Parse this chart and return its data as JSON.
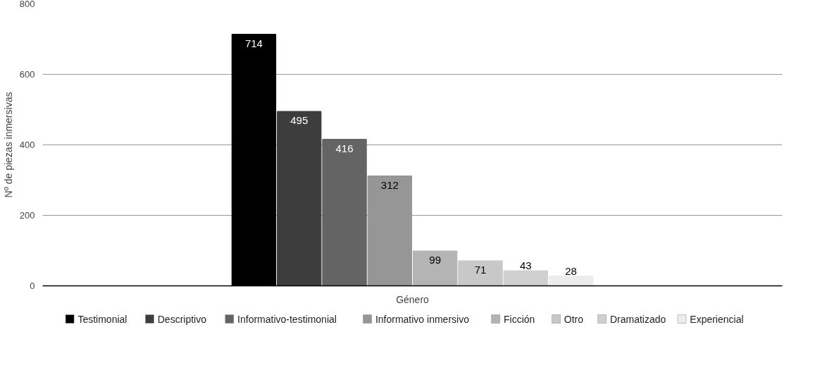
{
  "chart_data": {
    "type": "bar",
    "categories": [
      null
    ],
    "xlabel": "Género",
    "ylabel": "Nº de piezas inmersivas",
    "ylim": [
      0,
      800
    ],
    "yticks": [
      0,
      200,
      400,
      600,
      800
    ],
    "grid": "y",
    "legend": "bottom",
    "data_labels": true,
    "tick_labels": "y",
    "series": [
      {
        "name": "Testimonial",
        "color": "#000000",
        "values": [
          714
        ]
      },
      {
        "name": "Descriptivo",
        "color": "#3d3d3d",
        "values": [
          495
        ]
      },
      {
        "name": "Informativo-testimonial",
        "color": "#646464",
        "values": [
          416
        ]
      },
      {
        "name": "Informativo inmersivo",
        "color": "#969696",
        "values": [
          312
        ]
      },
      {
        "name": "Ficción",
        "color": "#b4b4b4",
        "values": [
          99
        ]
      },
      {
        "name": "Otro",
        "color": "#c8c8c8",
        "values": [
          71
        ]
      },
      {
        "name": "Dramatizado",
        "color": "#d0d0d0",
        "values": [
          43
        ]
      },
      {
        "name": "Experiencial",
        "color": "#ececec",
        "values": [
          28
        ]
      }
    ]
  }
}
